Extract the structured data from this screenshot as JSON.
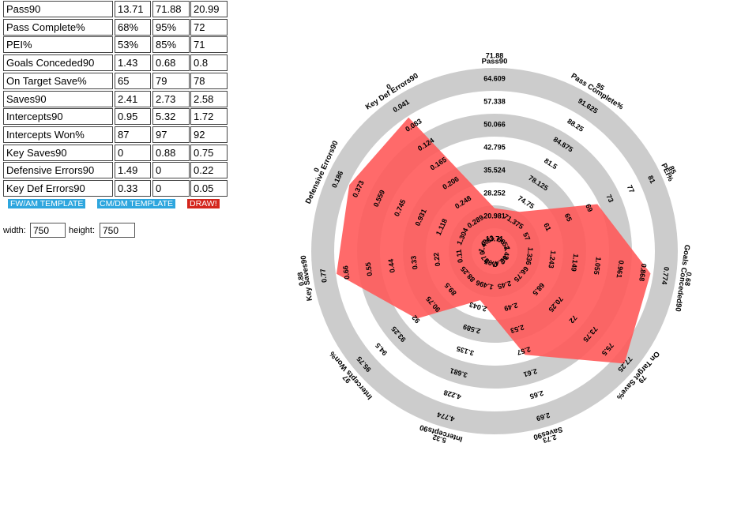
{
  "table": {
    "rows": [
      {
        "label": "Pass90",
        "value": "13.71",
        "max": "71.88",
        "min": "20.99"
      },
      {
        "label": "Pass Complete%",
        "value": "68%",
        "max": "95%",
        "min": "72"
      },
      {
        "label": "PEI%",
        "value": "53%",
        "max": "85%",
        "min": "71"
      },
      {
        "label": "Goals Conceded90",
        "value": "1.43",
        "max": "0.68",
        "min": "0.8"
      },
      {
        "label": "On Target Save%",
        "value": "65",
        "max": "79",
        "min": "78"
      },
      {
        "label": "Saves90",
        "value": "2.41",
        "max": "2.73",
        "min": "2.58"
      },
      {
        "label": "Intercepts90",
        "value": "0.95",
        "max": "5.32",
        "min": "1.72"
      },
      {
        "label": "Intercepts Won%",
        "value": "87",
        "max": "97",
        "min": "92"
      },
      {
        "label": "Key Saves90",
        "value": "0",
        "max": "0.88",
        "min": "0.75"
      },
      {
        "label": "Defensive Errors90",
        "value": "1.49",
        "max": "0",
        "min": "0.22"
      },
      {
        "label": "Key Def Errors90",
        "value": "0.33",
        "max": "0",
        "min": "0.05"
      }
    ]
  },
  "buttons": {
    "fw_am": "FW/AM TEMPLATE",
    "cm_dm": "CM/DM TEMPLATE",
    "draw": "DRAW!"
  },
  "size": {
    "width_label": "width:",
    "width_value": "750",
    "height_label": "height:",
    "height_value": "750"
  },
  "colors": {
    "ring": "#cccccc",
    "fill": "#ff5a5a",
    "button_blue": "#2ea6de",
    "button_red": "#d4261d"
  },
  "chart_data": {
    "type": "radar",
    "rings": 8,
    "axes": [
      {
        "name": "Pass90",
        "ticks": [
          "13.71",
          "20.981",
          "28.252",
          "35.524",
          "42.795",
          "50.066",
          "57.338",
          "64.609",
          "71.88"
        ],
        "value": 20.99,
        "min": 13.71,
        "max": 71.88
      },
      {
        "name": "Pass Complete%",
        "ticks": [
          "68",
          "71.375",
          "74.75",
          "78.125",
          "81.5",
          "84.875",
          "88.25",
          "91.625",
          "95"
        ],
        "value": 72,
        "min": 68,
        "max": 95
      },
      {
        "name": "PEI%",
        "ticks": [
          "53",
          "57",
          "61",
          "65",
          "69",
          "73",
          "77",
          "81",
          "85"
        ],
        "value": 71,
        "min": 53,
        "max": 85
      },
      {
        "name": "Goals Conceded90",
        "ticks": [
          "1.43",
          "1.336",
          "1.243",
          "1.149",
          "1.055",
          "0.961",
          "0.868",
          "0.774",
          "0.68"
        ],
        "value": 0.8,
        "min": 1.43,
        "max": 0.68
      },
      {
        "name": "On Target Save%",
        "ticks": [
          "65",
          "66.75",
          "68.5",
          "70.25",
          "72",
          "73.75",
          "75.5",
          "77.25",
          "79"
        ],
        "value": 78,
        "min": 65,
        "max": 79
      },
      {
        "name": "Saves90",
        "ticks": [
          "2.41",
          "2.45",
          "2.49",
          "2.53",
          "2.57",
          "2.61",
          "2.65",
          "2.69",
          "2.73"
        ],
        "value": 2.58,
        "min": 2.41,
        "max": 2.73
      },
      {
        "name": "Intercepts90",
        "ticks": [
          "0.95",
          "1.496",
          "2.043",
          "2.589",
          "3.135",
          "3.681",
          "4.228",
          "4.774",
          "5.32"
        ],
        "value": 1.72,
        "min": 0.95,
        "max": 5.32
      },
      {
        "name": "Intercepts Won%",
        "ticks": [
          "87",
          "88.25",
          "89.5",
          "90.75",
          "92",
          "93.25",
          "94.5",
          "95.75",
          "97"
        ],
        "value": 92,
        "min": 87,
        "max": 97
      },
      {
        "name": "Key Saves90",
        "ticks": [
          "0",
          "0.11",
          "0.22",
          "0.33",
          "0.44",
          "0.55",
          "0.66",
          "0.77",
          "0.88"
        ],
        "value": 0.75,
        "min": 0,
        "max": 0.88
      },
      {
        "name": "Defensive Errors90",
        "ticks": [
          "1.49",
          "1.304",
          "1.118",
          "0.931",
          "0.745",
          "0.559",
          "0.373",
          "0.186",
          "0"
        ],
        "value": 0.22,
        "min": 1.49,
        "max": 0
      },
      {
        "name": "Key Def Errors90",
        "ticks": [
          "0.33",
          "0.289",
          "0.248",
          "0.206",
          "0.165",
          "0.124",
          "0.083",
          "0.041",
          "0"
        ],
        "value": 0.05,
        "min": 0.33,
        "max": 0
      }
    ]
  }
}
